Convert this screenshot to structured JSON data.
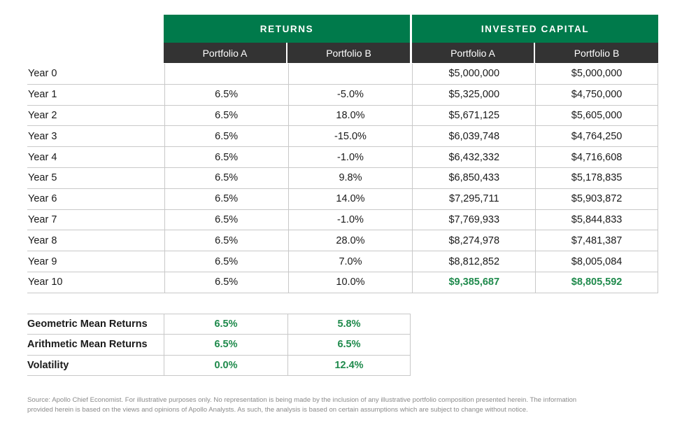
{
  "group_headers": {
    "returns": "RETURNS",
    "invested_capital": "INVESTED CAPITAL"
  },
  "columns": {
    "returns_a": "Portfolio A",
    "returns_b": "Portfolio B",
    "invested_a": "Portfolio A",
    "invested_b": "Portfolio B"
  },
  "rows": [
    {
      "label": "Year 0",
      "ret_a": "",
      "ret_b": "",
      "inv_a": "$5,000,000",
      "inv_b": "$5,000,000"
    },
    {
      "label": "Year 1",
      "ret_a": "6.5%",
      "ret_b": "-5.0%",
      "inv_a": "$5,325,000",
      "inv_b": "$4,750,000"
    },
    {
      "label": "Year 2",
      "ret_a": "6.5%",
      "ret_b": "18.0%",
      "inv_a": "$5,671,125",
      "inv_b": "$5,605,000"
    },
    {
      "label": "Year 3",
      "ret_a": "6.5%",
      "ret_b": "-15.0%",
      "inv_a": "$6,039,748",
      "inv_b": "$4,764,250"
    },
    {
      "label": "Year 4",
      "ret_a": "6.5%",
      "ret_b": "-1.0%",
      "inv_a": "$6,432,332",
      "inv_b": "$4,716,608"
    },
    {
      "label": "Year 5",
      "ret_a": "6.5%",
      "ret_b": "9.8%",
      "inv_a": "$6,850,433",
      "inv_b": "$5,178,835"
    },
    {
      "label": "Year 6",
      "ret_a": "6.5%",
      "ret_b": "14.0%",
      "inv_a": "$7,295,711",
      "inv_b": "$5,903,872"
    },
    {
      "label": "Year 7",
      "ret_a": "6.5%",
      "ret_b": "-1.0%",
      "inv_a": "$7,769,933",
      "inv_b": "$5,844,833"
    },
    {
      "label": "Year 8",
      "ret_a": "6.5%",
      "ret_b": "28.0%",
      "inv_a": "$8,274,978",
      "inv_b": "$7,481,387"
    },
    {
      "label": "Year 9",
      "ret_a": "6.5%",
      "ret_b": "7.0%",
      "inv_a": "$8,812,852",
      "inv_b": "$8,005,084"
    },
    {
      "label": "Year 10",
      "ret_a": "6.5%",
      "ret_b": "10.0%",
      "inv_a": "$9,385,687",
      "inv_b": "$8,805,592"
    }
  ],
  "stats": [
    {
      "label": "Geometric Mean Returns",
      "a": "6.5%",
      "b": "5.8%"
    },
    {
      "label": "Arithmetic Mean Returns",
      "a": "6.5%",
      "b": "6.5%"
    },
    {
      "label": "Volatility",
      "a": "0.0%",
      "b": "12.4%"
    }
  ],
  "footnote": "Source: Apollo Chief Economist. For illustrative purposes only. No representation is being made by the inclusion of any illustrative portfolio composition presented herein. The information provided herein is based on the views and opinions of Apollo Analysts. As such, the analysis is based on certain assumptions which are subject to change without notice.",
  "colors": {
    "header_green": "#007a4b",
    "header_dark": "#333333",
    "highlight_green": "#1f8a4c"
  }
}
